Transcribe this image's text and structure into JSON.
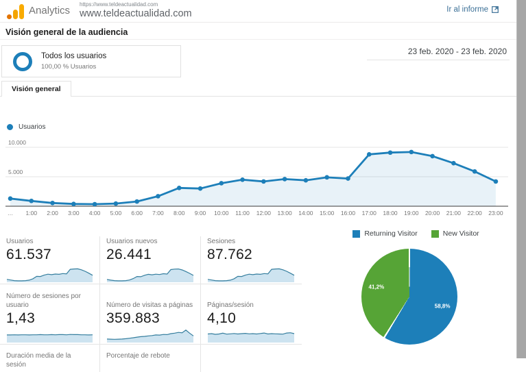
{
  "header": {
    "app_name": "Analytics",
    "property_url_small": "https://www.teldeactualidad.com",
    "property_name": "www.teldeactualidad.com",
    "go_to_report": "Ir al informe"
  },
  "page_title": "Visión general de la audiencia",
  "segment": {
    "title": "Todos los usuarios",
    "subtitle": "100,00 % Usuarios"
  },
  "date_range": "23 feb. 2020 - 23 feb. 2020",
  "tab_label": "Visión general",
  "colors": {
    "chart_blue": "#1d7fb9",
    "pie_green": "#56a436",
    "link_blue": "#3a6f96",
    "logo_amber": "#f9ab00",
    "logo_orange": "#e37400"
  },
  "chart_data": [
    {
      "type": "line",
      "series_label": "Usuarios",
      "color": "#1d7fb9",
      "x_labels": [
        "…",
        "1:00",
        "2:00",
        "3:00",
        "4:00",
        "5:00",
        "6:00",
        "7:00",
        "8:00",
        "9:00",
        "10:00",
        "11:00",
        "12:00",
        "13:00",
        "14:00",
        "15:00",
        "16:00",
        "17:00",
        "18:00",
        "19:00",
        "20:00",
        "21:00",
        "22:00",
        "23:00"
      ],
      "values": [
        1300,
        900,
        550,
        380,
        350,
        450,
        800,
        1700,
        3100,
        3000,
        3900,
        4500,
        4200,
        4600,
        4400,
        4900,
        4700,
        8800,
        9100,
        9200,
        8500,
        7300,
        5900,
        4200
      ],
      "ylim": [
        0,
        11000
      ],
      "yticks": [
        {
          "label": "5.000",
          "value": 5000
        },
        {
          "label": "10.000",
          "value": 10000
        }
      ],
      "grid": true
    },
    {
      "type": "pie",
      "legend": [
        "Returning Visitor",
        "New Visitor"
      ],
      "values": [
        58.8,
        41.2
      ],
      "display": [
        "58,8%",
        "41,2%"
      ],
      "colors": [
        "#1d7fb9",
        "#56a436"
      ],
      "legend_position": "top"
    }
  ],
  "metrics": [
    {
      "label": "Usuarios",
      "value": "61.537",
      "spark": [
        0.14,
        0.1,
        0.06,
        0.05,
        0.05,
        0.06,
        0.09,
        0.18,
        0.33,
        0.32,
        0.41,
        0.47,
        0.44,
        0.48,
        0.46,
        0.51,
        0.49,
        0.78,
        0.8,
        0.81,
        0.75,
        0.65,
        0.53,
        0.4
      ]
    },
    {
      "label": "Usuarios nuevos",
      "value": "26.441",
      "spark": [
        0.13,
        0.09,
        0.06,
        0.05,
        0.05,
        0.06,
        0.1,
        0.19,
        0.32,
        0.31,
        0.4,
        0.46,
        0.43,
        0.47,
        0.45,
        0.5,
        0.48,
        0.76,
        0.79,
        0.8,
        0.74,
        0.64,
        0.52,
        0.39
      ]
    },
    {
      "label": "Sesiones",
      "value": "87.762",
      "spark": [
        0.14,
        0.1,
        0.06,
        0.05,
        0.05,
        0.06,
        0.09,
        0.18,
        0.33,
        0.32,
        0.41,
        0.47,
        0.44,
        0.48,
        0.46,
        0.51,
        0.49,
        0.78,
        0.8,
        0.81,
        0.75,
        0.65,
        0.53,
        0.4
      ]
    },
    {
      "label": "Número de sesiones por usuario",
      "value": "1,43",
      "spark": [
        0.44,
        0.44,
        0.45,
        0.44,
        0.45,
        0.45,
        0.44,
        0.45,
        0.45,
        0.46,
        0.45,
        0.45,
        0.46,
        0.45,
        0.46,
        0.46,
        0.45,
        0.47,
        0.46,
        0.46,
        0.45,
        0.45,
        0.44,
        0.45
      ]
    },
    {
      "label": "Número de visitas a páginas",
      "value": "359.883",
      "spark": [
        0.18,
        0.17,
        0.16,
        0.17,
        0.18,
        0.2,
        0.23,
        0.26,
        0.3,
        0.33,
        0.35,
        0.38,
        0.4,
        0.44,
        0.43,
        0.47,
        0.46,
        0.52,
        0.55,
        0.6,
        0.58,
        0.75,
        0.55,
        0.38
      ]
    },
    {
      "label": "Páginas/sesión",
      "value": "4,10",
      "spark": [
        0.5,
        0.52,
        0.48,
        0.5,
        0.55,
        0.49,
        0.51,
        0.53,
        0.5,
        0.52,
        0.54,
        0.51,
        0.52,
        0.5,
        0.53,
        0.56,
        0.5,
        0.52,
        0.51,
        0.5,
        0.49,
        0.56,
        0.58,
        0.52
      ]
    }
  ],
  "metrics_partial": [
    {
      "label": "Duración media de la sesión"
    },
    {
      "label": "Porcentaje de rebote"
    }
  ]
}
